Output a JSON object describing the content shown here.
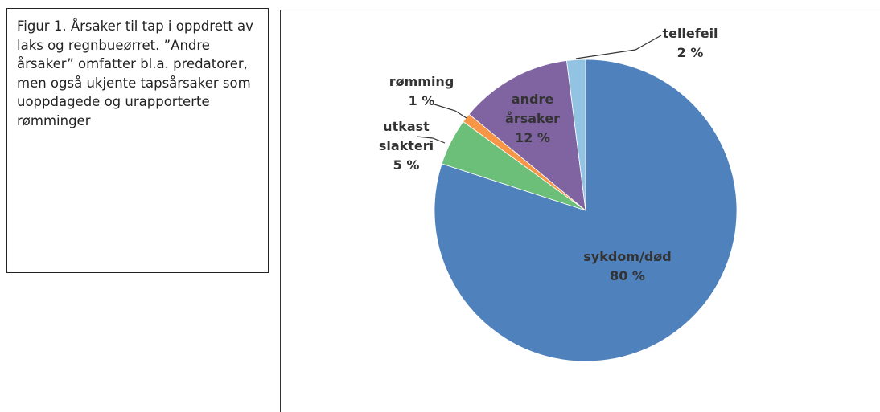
{
  "caption": "Figur 1. Årsaker til tap i oppdrett av laks og regnbueørret. ”Andre årsaker” omfatter bl.a. predatorer, men også ukjente tapsårsaker som uoppdagede og urapporterte rømminger",
  "chart_data": {
    "type": "pie",
    "categories": [
      "sykdom/død",
      "utkast slakteri",
      "rømming",
      "andre årsaker",
      "tellefeil"
    ],
    "values": [
      80,
      5,
      1,
      12,
      2
    ],
    "value_labels": [
      "80 %",
      "5 %",
      "1 %",
      "12 %",
      "2 %"
    ],
    "colors": [
      "#4f81bd",
      "#6cbf78",
      "#f79646",
      "#8064a2",
      "#93c3e3"
    ]
  }
}
